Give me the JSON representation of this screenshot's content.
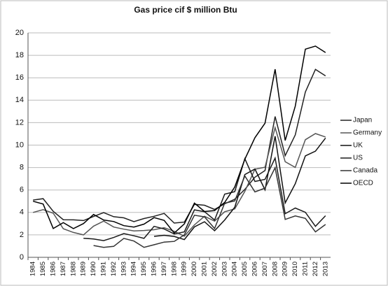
{
  "chart_data": {
    "type": "line",
    "title": "Gas price cif $ million Btu",
    "categories": [
      "1984",
      "1985",
      "1986",
      "1987",
      "1988",
      "1989",
      "1990",
      "1991",
      "1992",
      "1993",
      "1994",
      "1995",
      "1996",
      "1997",
      "1998",
      "1999",
      "2000",
      "2001",
      "2002",
      "2003",
      "2004",
      "2005",
      "2006",
      "2007",
      "2008",
      "2009",
      "2010",
      "2011",
      "2012",
      "2013"
    ],
    "series": [
      {
        "name": "Japan",
        "color": "#222222",
        "values": [
          5.1,
          5.23,
          4.1,
          3.35,
          3.34,
          3.28,
          3.64,
          3.99,
          3.62,
          3.52,
          3.18,
          3.46,
          3.66,
          3.91,
          3.05,
          3.14,
          4.72,
          4.64,
          4.27,
          4.77,
          5.18,
          6.05,
          7.14,
          7.73,
          12.55,
          9.06,
          10.91,
          14.73,
          16.75,
          16.17
        ]
      },
      {
        "name": "Germany",
        "color": "#555555",
        "values": [
          4.0,
          4.25,
          3.93,
          2.55,
          2.22,
          2.0,
          2.78,
          3.23,
          2.7,
          2.51,
          2.35,
          2.39,
          2.46,
          2.64,
          2.32,
          1.88,
          2.89,
          3.66,
          3.23,
          4.06,
          4.32,
          5.88,
          7.85,
          8.03,
          11.56,
          8.52,
          8.01,
          10.48,
          11.03,
          10.72
        ]
      },
      {
        "name": "UK",
        "color": "#111111",
        "values": [
          null,
          null,
          null,
          null,
          null,
          null,
          null,
          null,
          null,
          null,
          null,
          null,
          1.87,
          1.96,
          1.86,
          1.58,
          2.71,
          3.17,
          2.37,
          3.33,
          4.46,
          7.38,
          7.87,
          6.01,
          10.79,
          4.85,
          6.56,
          9.04,
          9.46,
          10.63
        ]
      },
      {
        "name": "US",
        "color": "#1a1a1a",
        "values": [
          null,
          null,
          null,
          null,
          null,
          1.7,
          1.64,
          1.49,
          1.77,
          2.12,
          1.92,
          1.69,
          2.76,
          2.53,
          2.08,
          2.27,
          4.23,
          4.07,
          3.33,
          5.63,
          5.85,
          8.79,
          6.76,
          6.95,
          8.85,
          3.89,
          4.39,
          4.01,
          2.76,
          3.71
        ]
      },
      {
        "name": "Canada",
        "color": "#333333",
        "values": [
          null,
          null,
          null,
          null,
          null,
          null,
          1.05,
          0.89,
          0.98,
          1.69,
          1.45,
          0.89,
          1.12,
          1.36,
          1.42,
          2.0,
          3.75,
          3.61,
          2.57,
          4.83,
          5.03,
          7.25,
          5.83,
          6.17,
          7.99,
          3.38,
          3.69,
          3.47,
          2.27,
          2.93
        ]
      },
      {
        "name": "OECD",
        "color": "#000000",
        "values": [
          5.0,
          4.75,
          2.57,
          3.09,
          2.56,
          3.01,
          3.82,
          3.33,
          3.19,
          2.82,
          2.7,
          2.96,
          3.54,
          3.29,
          2.16,
          2.98,
          4.83,
          4.08,
          4.17,
          4.89,
          6.27,
          8.74,
          10.66,
          11.95,
          16.76,
          10.41,
          13.47,
          18.55,
          18.82,
          18.25
        ]
      }
    ],
    "ylim": [
      0,
      20
    ],
    "yticks": [
      0,
      2,
      4,
      6,
      8,
      10,
      12,
      14,
      16,
      18,
      20
    ],
    "grid": true,
    "legend": "right"
  }
}
